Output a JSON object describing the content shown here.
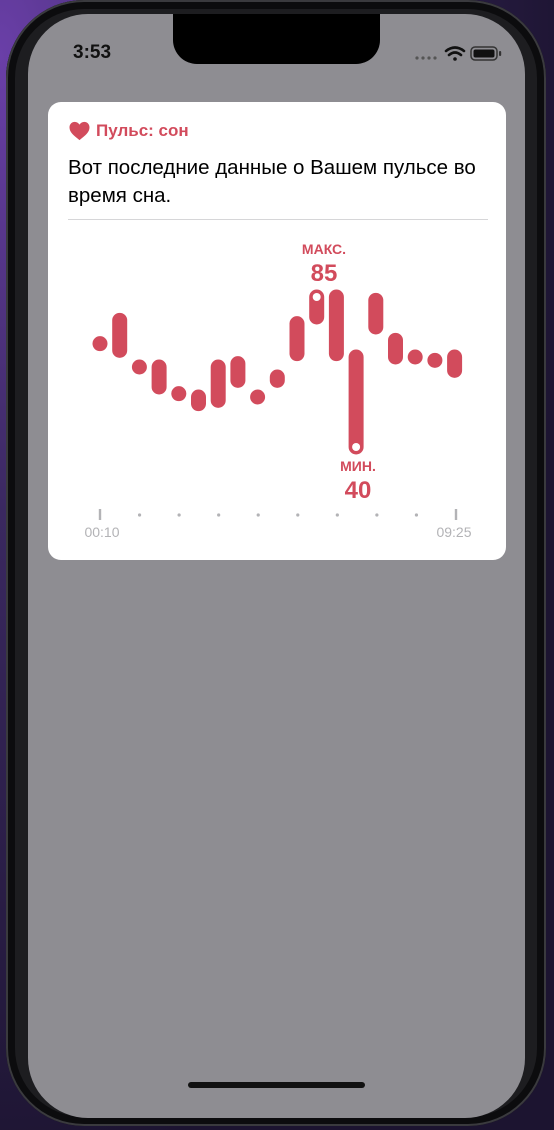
{
  "status_bar": {
    "time": "3:53"
  },
  "card": {
    "category": "Пульс: сон",
    "message": "Вот последние данные о Вашем пульсе во время сна.",
    "accent_color": "#d24b5c"
  },
  "chart_data": {
    "type": "range-bar",
    "series_color": "#d24b5c",
    "y_range": [
      30,
      95
    ],
    "points": [
      {
        "low": 71,
        "high": 71
      },
      {
        "low": 69,
        "high": 78
      },
      {
        "low": 64,
        "high": 64
      },
      {
        "low": 58,
        "high": 64
      },
      {
        "low": 56,
        "high": 56
      },
      {
        "low": 53,
        "high": 55
      },
      {
        "low": 54,
        "high": 64
      },
      {
        "low": 60,
        "high": 65
      },
      {
        "low": 55,
        "high": 55
      },
      {
        "low": 60,
        "high": 61
      },
      {
        "low": 68,
        "high": 77
      },
      {
        "low": 79,
        "high": 85
      },
      {
        "low": 68,
        "high": 85
      },
      {
        "low": 40,
        "high": 67
      },
      {
        "low": 76,
        "high": 84
      },
      {
        "low": 67,
        "high": 72
      },
      {
        "low": 67,
        "high": 67
      },
      {
        "low": 66,
        "high": 66
      },
      {
        "low": 63,
        "high": 67
      }
    ],
    "max": {
      "label": "МАКС.",
      "value": "85",
      "index": 11
    },
    "min": {
      "label": "МИН.",
      "value": "40",
      "index": 13
    },
    "x_labels": [
      "00:10",
      "09:25"
    ],
    "x_ticks": 10
  }
}
